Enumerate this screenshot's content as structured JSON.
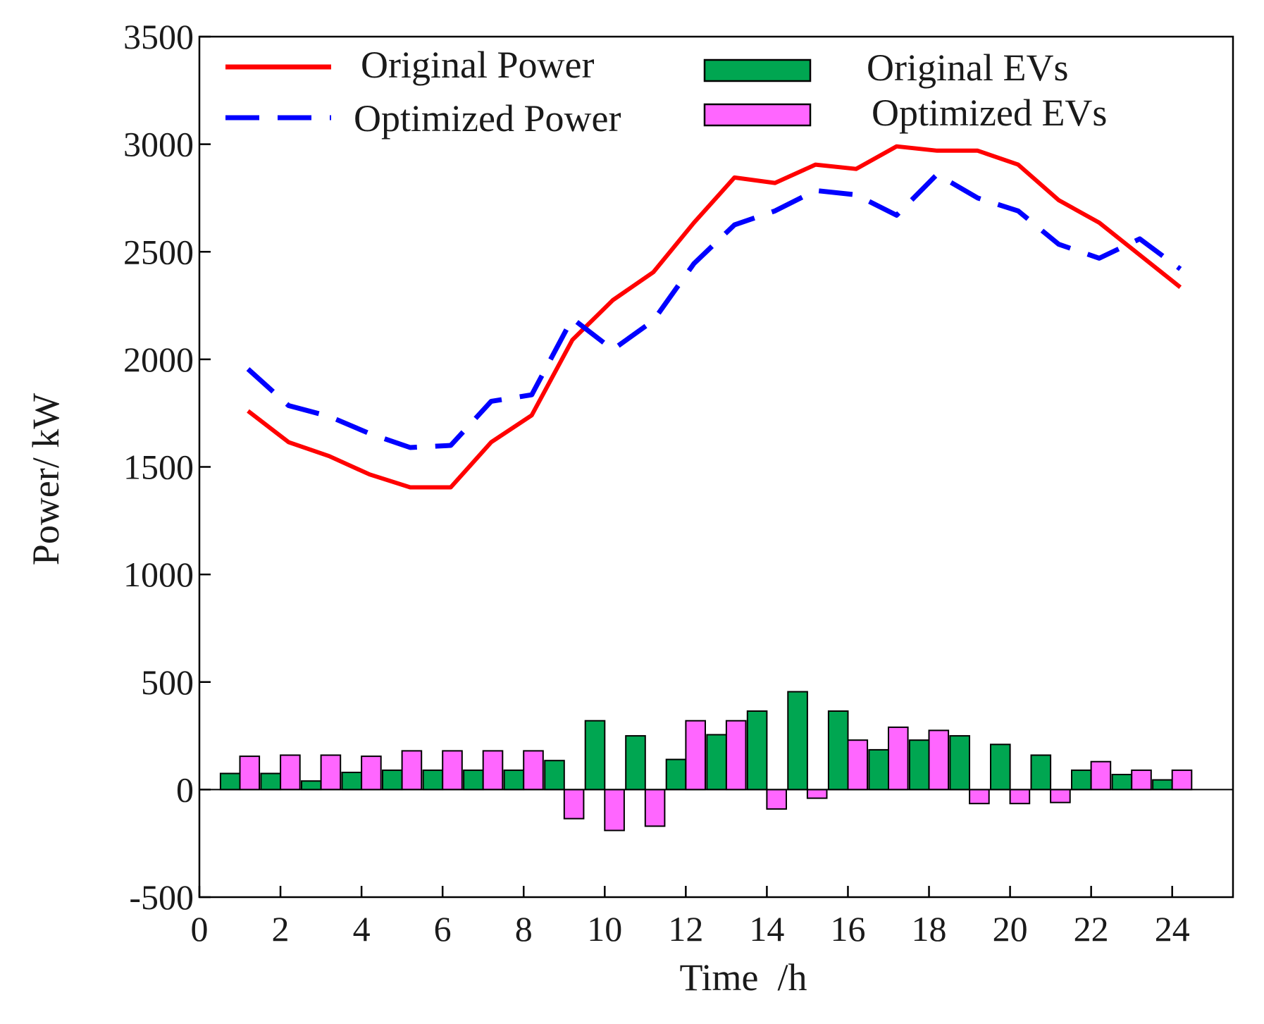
{
  "chart_data": {
    "type": "line+bar",
    "title": "",
    "xlabel": "Time  /h",
    "ylabel": "Power/ kW",
    "xlim": [
      0,
      25.5
    ],
    "ylim": [
      -500,
      3500
    ],
    "xticks": [
      0,
      2,
      4,
      6,
      8,
      10,
      12,
      14,
      16,
      18,
      20,
      22,
      24
    ],
    "yticks": [
      -500,
      0,
      500,
      1000,
      1500,
      2000,
      2500,
      3000,
      3500
    ],
    "xtick_labels": [
      "0",
      "2",
      "4",
      "6",
      "8",
      "10",
      "12",
      "14",
      "16",
      "18",
      "20",
      "22",
      "24"
    ],
    "ytick_labels": [
      "-500",
      "0",
      "500",
      "1000",
      "1500",
      "2000",
      "2500",
      "3000",
      "3500"
    ],
    "grid": false,
    "legend": [
      {
        "label": "Original Power",
        "kind": "line",
        "color": "#ff0000",
        "dash": "solid"
      },
      {
        "label": "Optimized Power",
        "kind": "line",
        "color": "#0000ff",
        "dash": "dashed"
      },
      {
        "label": "Original EVs",
        "kind": "bar",
        "color": "#00a651"
      },
      {
        "label": "Optimized EVs",
        "kind": "bar",
        "color": "#ff66ff"
      }
    ],
    "hours": [
      1,
      2,
      3,
      4,
      5,
      6,
      7,
      8,
      9,
      10,
      11,
      12,
      13,
      14,
      15,
      16,
      17,
      18,
      19,
      20,
      21,
      22,
      23,
      24
    ],
    "line_x": [
      1.2,
      2.2,
      3.2,
      4.2,
      5.2,
      6.2,
      7.2,
      8.2,
      9.2,
      10.2,
      11.2,
      12.2,
      13.2,
      14.2,
      15.2,
      16.2,
      17.2,
      18.2,
      19.2,
      20.2,
      21.2,
      22.2,
      23.2,
      24.2
    ],
    "series": [
      {
        "name": "Original Power",
        "color": "#ff0000",
        "values": [
          1760,
          1615,
          1550,
          1465,
          1405,
          1405,
          1615,
          1740,
          2090,
          2275,
          2405,
          2635,
          2845,
          2820,
          2905,
          2885,
          2990,
          2970,
          2970,
          2905,
          2740,
          2635,
          2485,
          2335
        ]
      },
      {
        "name": "Optimized Power",
        "color": "#0000ff",
        "values": [
          1955,
          1785,
          1735,
          1655,
          1590,
          1600,
          1805,
          1835,
          2190,
          2045,
          2180,
          2445,
          2625,
          2690,
          2785,
          2765,
          2670,
          2860,
          2750,
          2690,
          2535,
          2470,
          2560,
          2420
        ]
      }
    ],
    "bars": [
      {
        "name": "Original EVs",
        "color": "#00a651",
        "values": [
          75,
          75,
          40,
          80,
          90,
          90,
          90,
          90,
          135,
          320,
          250,
          140,
          255,
          365,
          455,
          365,
          185,
          230,
          250,
          210,
          160,
          90,
          70,
          45
        ]
      },
      {
        "name": "Optimized EVs",
        "color": "#ff66ff",
        "values": [
          155,
          160,
          160,
          155,
          180,
          180,
          180,
          180,
          -135,
          -190,
          -170,
          320,
          320,
          -90,
          -40,
          230,
          290,
          275,
          -65,
          -65,
          -60,
          130,
          90,
          90
        ]
      }
    ]
  }
}
